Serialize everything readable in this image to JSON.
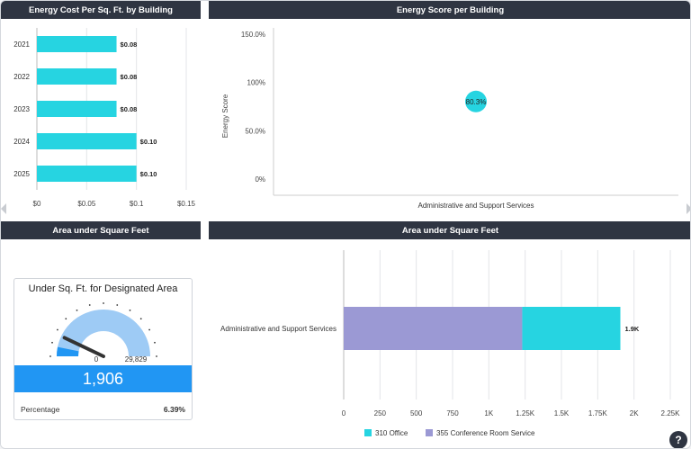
{
  "panels": {
    "cost": {
      "title": "Energy Cost Per Sq. Ft. by Building"
    },
    "score": {
      "title": "Energy Score per Building"
    },
    "area_left": {
      "title": "Area under Square Feet"
    },
    "area_right": {
      "title": "Area under Square Feet"
    }
  },
  "gauge": {
    "title": "Under Sq. Ft. for Designated Area",
    "min_label": "0",
    "max_label": "29,829",
    "value_label": "1,906",
    "value": 1906,
    "max": 29829,
    "footer_label": "Percentage",
    "footer_value": "6.39%"
  },
  "help": {
    "label": "?"
  },
  "colors": {
    "header": "#2f3542",
    "bar": "#26d4e1",
    "accent": "#2196f3",
    "purple": "#9b99d4",
    "gauge_fill": "#9ecbf5"
  },
  "chart_data": [
    {
      "type": "bar",
      "orientation": "horizontal",
      "title": "Energy Cost Per Sq. Ft. by Building",
      "categories": [
        "2021",
        "2022",
        "2023",
        "2024",
        "2025"
      ],
      "values": [
        0.08,
        0.08,
        0.08,
        0.1,
        0.1
      ],
      "data_labels": [
        "$0.08",
        "$0.08",
        "$0.08",
        "$0.10",
        "$0.10"
      ],
      "xlim": [
        0,
        0.15
      ],
      "x_ticks": [
        "$0",
        "$0.05",
        "$0.1",
        "$0.15"
      ],
      "grid": true
    },
    {
      "type": "scatter",
      "title": "Energy Score per Building",
      "ylabel": "Energy Score",
      "categories": [
        "Administrative and Support Services"
      ],
      "values": [
        80.3
      ],
      "data_labels": [
        "80.3%"
      ],
      "ylim": [
        0,
        150
      ],
      "y_ticks": [
        "0%",
        "50.0%",
        "100%",
        "150.0%"
      ]
    },
    {
      "type": "bar",
      "orientation": "horizontal",
      "stacked": true,
      "title": "Area under Square Feet",
      "categories": [
        "Administrative and Support Services"
      ],
      "series": [
        {
          "name": "355 Conference Room Service",
          "values": [
            1230
          ]
        },
        {
          "name": "310 Office",
          "values": [
            676
          ]
        }
      ],
      "total_labels": [
        "1.9K"
      ],
      "xlim": [
        0,
        2250
      ],
      "x_ticks": [
        "0",
        "250",
        "500",
        "750",
        "1K",
        "1.25K",
        "1.5K",
        "1.75K",
        "2K",
        "2.25K"
      ],
      "legend": [
        "310 Office",
        "355 Conference Room Service"
      ],
      "legend_position": "bottom",
      "grid": true
    }
  ]
}
